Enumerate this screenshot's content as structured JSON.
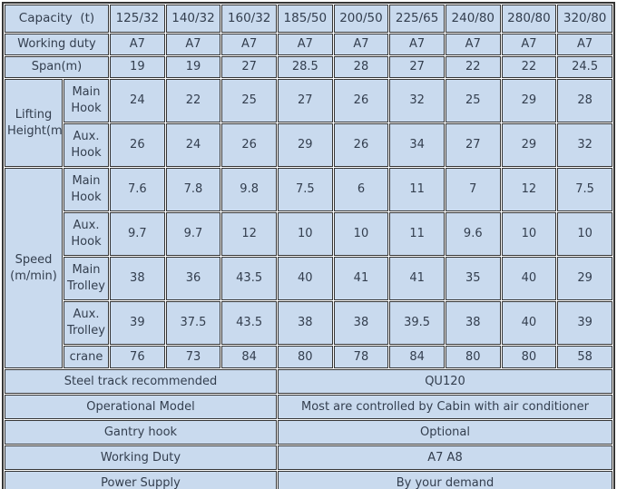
{
  "colors": {
    "cell_bg": "#c9daee",
    "border": "#353535",
    "text": "#333e4e",
    "gap": "#ffffff"
  },
  "chart_data": {
    "type": "table",
    "capacity_row": {
      "label": "Capacity  (t)",
      "values": [
        "125/32",
        "140/32",
        "160/32",
        "185/50",
        "200/50",
        "225/65",
        "240/80",
        "280/80",
        "320/80"
      ]
    },
    "working_duty": {
      "label": "Working duty",
      "values": [
        "A7",
        "A7",
        "A7",
        "A7",
        "A7",
        "A7",
        "A7",
        "A7",
        "A7"
      ]
    },
    "span": {
      "label": "Span(m)",
      "values": [
        "19",
        "19",
        "27",
        "28.5",
        "28",
        "27",
        "22",
        "22",
        "24.5"
      ]
    },
    "lifting_height": {
      "label": "Lifting Height(m)",
      "rows": [
        {
          "label": "Main Hook",
          "values": [
            "24",
            "22",
            "25",
            "27",
            "26",
            "32",
            "25",
            "29",
            "28"
          ]
        },
        {
          "label": "Aux. Hook",
          "values": [
            "26",
            "24",
            "26",
            "29",
            "26",
            "34",
            "27",
            "29",
            "32"
          ]
        }
      ]
    },
    "speed": {
      "label": "Speed (m/min)",
      "rows": [
        {
          "label": "Main Hook",
          "values": [
            "7.6",
            "7.8",
            "9.8",
            "7.5",
            "6",
            "11",
            "7",
            "12",
            "7.5"
          ]
        },
        {
          "label": "Aux. Hook",
          "values": [
            "9.7",
            "9.7",
            "12",
            "10",
            "10",
            "11",
            "9.6",
            "10",
            "10"
          ]
        },
        {
          "label": "Main Trolley",
          "values": [
            "38",
            "36",
            "43.5",
            "40",
            "41",
            "41",
            "35",
            "40",
            "29"
          ]
        },
        {
          "label": "Aux. Trolley",
          "values": [
            "39",
            "37.5",
            "43.5",
            "38",
            "38",
            "39.5",
            "38",
            "40",
            "39"
          ]
        },
        {
          "label": "crane",
          "values": [
            "76",
            "73",
            "84",
            "80",
            "78",
            "84",
            "80",
            "80",
            "58"
          ]
        }
      ]
    },
    "footer_rows": [
      {
        "label": "Steel track recommended",
        "value": "QU120"
      },
      {
        "label": "Operational Model",
        "value": "Most are controlled by Cabin with air conditioner"
      },
      {
        "label": "Gantry hook",
        "value": "Optional"
      },
      {
        "label": "Working Duty",
        "value": "A7 A8"
      },
      {
        "label": "Power Supply",
        "value": "By your demand"
      }
    ]
  }
}
